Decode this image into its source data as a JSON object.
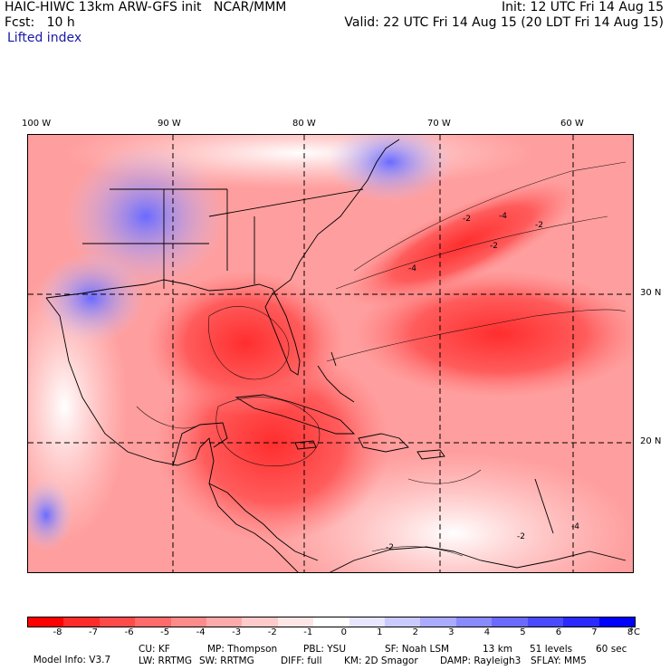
{
  "header": {
    "model_line": "HAIC-HIWC 13km ARW-GFS init   NCAR/MMM",
    "forecast": "Fcst:   10 h",
    "field": "Lifted index",
    "init": "Init: 12 UTC Fri 14 Aug 15",
    "valid": "Valid: 22 UTC Fri 14 Aug 15 (20 LDT Fri 14 Aug 15)"
  },
  "map": {
    "longitude_labels": [
      "100 W",
      "90 W",
      "80 W",
      "70 W",
      "60 W"
    ],
    "latitude_labels": [
      "30 N",
      "20 N"
    ],
    "contour_labels": [
      "-2",
      "-4",
      "-2",
      "-2",
      "-4",
      "-2",
      "-4",
      "-2"
    ]
  },
  "colorbar": {
    "colors": [
      "#ff0000",
      "#ff2a2a",
      "#ff4a4a",
      "#ff6a6a",
      "#ff8a8a",
      "#ffaaaa",
      "#ffcaca",
      "#ffe6e6",
      "#ffffff",
      "#e6e6ff",
      "#cacaff",
      "#aaaaff",
      "#8a8aff",
      "#6a6aff",
      "#4a4aff",
      "#2a2aff",
      "#0000ff"
    ],
    "labels": [
      "-8",
      "-7",
      "-6",
      "-5",
      "-4",
      "-3",
      "-2",
      "-1",
      "0",
      "1",
      "2",
      "3",
      "4",
      "5",
      "6",
      "7",
      "8"
    ],
    "unit": "°C"
  },
  "footer": {
    "line1": [
      "Model Info: V3.7",
      "CU: KF",
      "MP: Thompson",
      "PBL: YSU",
      "SF: Noah LSM",
      "13 km",
      "51 levels",
      "60 sec"
    ],
    "line2": [
      "LW: RRTMG",
      "SW: RRTMG",
      "DIFF: full",
      "KM: 2D Smagor",
      "DAMP: Rayleigh3",
      "SFLAY: MM5"
    ]
  }
}
